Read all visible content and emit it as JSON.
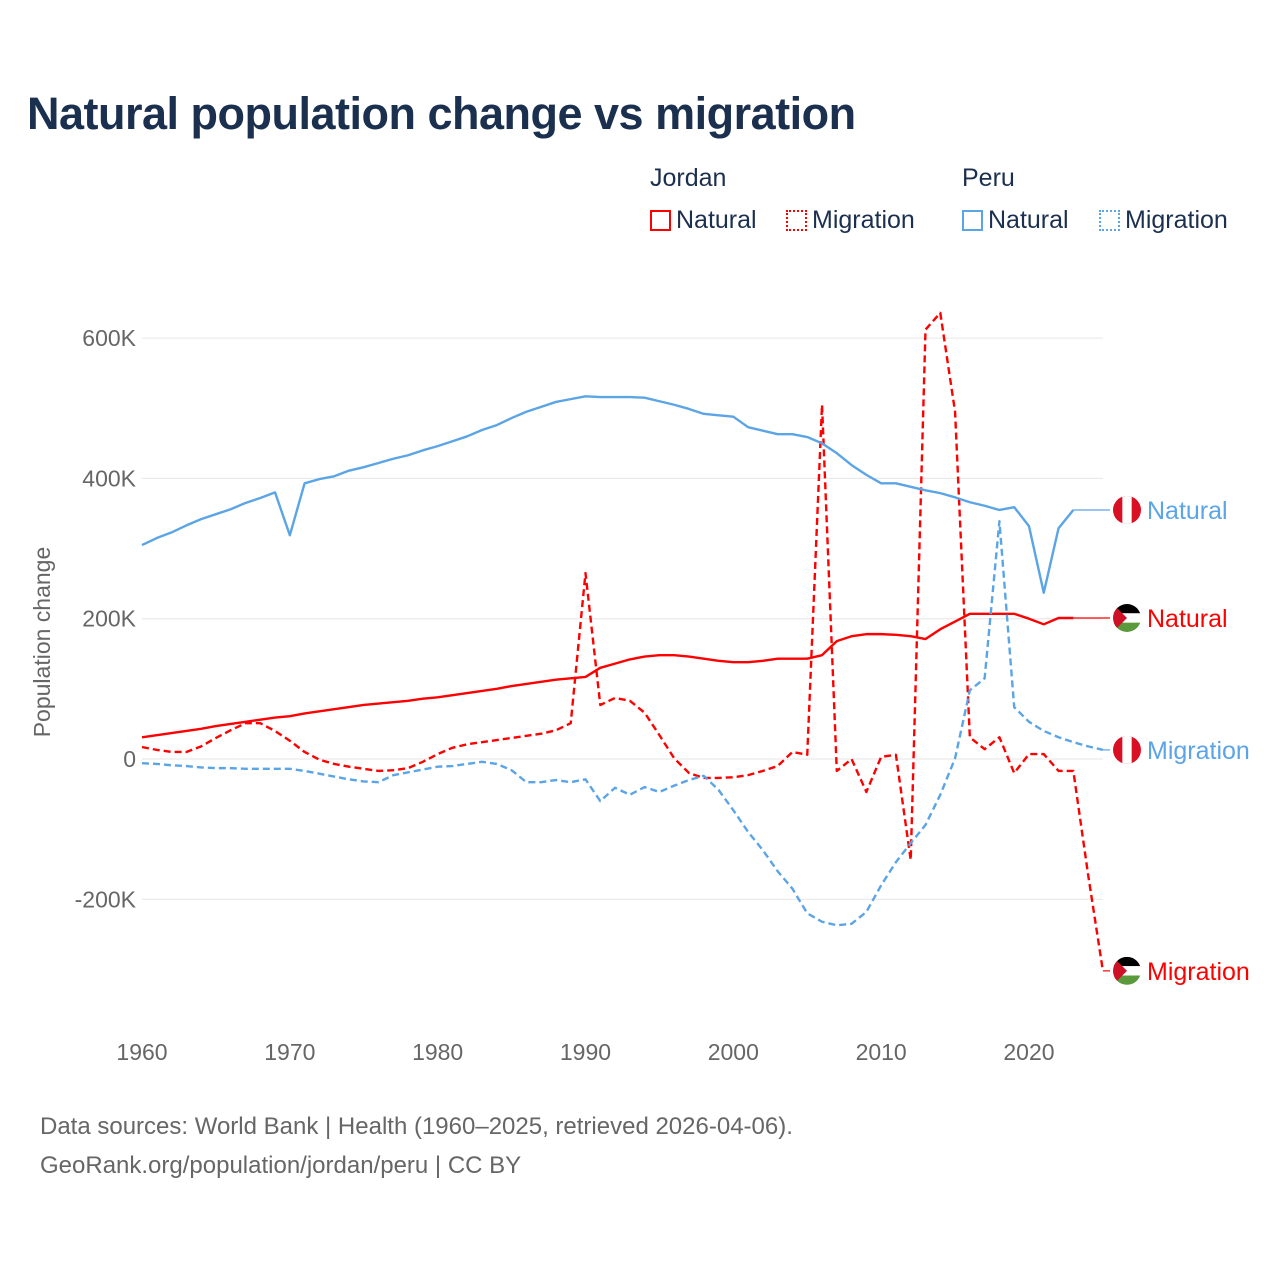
{
  "chart_data": {
    "type": "line",
    "title": "Natural population change vs migration",
    "xlabel": "",
    "ylabel": "Population change",
    "xlim": [
      1960,
      2025
    ],
    "ylim": [
      -300000,
      640000
    ],
    "x_ticks": [
      1960,
      1970,
      1980,
      1990,
      2000,
      2010,
      2020
    ],
    "y_ticks": [
      {
        "v": -200000,
        "label": "-200K"
      },
      {
        "v": 0,
        "label": "0"
      },
      {
        "v": 200000,
        "label": "200K"
      },
      {
        "v": 400000,
        "label": "400K"
      },
      {
        "v": 600000,
        "label": "600K"
      }
    ],
    "grid": true,
    "legend_placement": "top-right",
    "legend": [
      {
        "group": "Jordan",
        "items": [
          "Natural",
          "Migration"
        ]
      },
      {
        "group": "Peru",
        "items": [
          "Natural",
          "Migration"
        ]
      }
    ],
    "series": [
      {
        "name": "Jordan Natural",
        "country": "Jordan",
        "label": "Natural",
        "color": "#ff0000",
        "dash": false,
        "start": 1960,
        "values_k": [
          31,
          34,
          37,
          40,
          43,
          47,
          50,
          53,
          56,
          59,
          61,
          65,
          68,
          71,
          74,
          77,
          79,
          81,
          83,
          86,
          88,
          91,
          94,
          97,
          100,
          104,
          107,
          110,
          113,
          115,
          117,
          130,
          136,
          142,
          146,
          148,
          148,
          146,
          143,
          140,
          138,
          138,
          140,
          143,
          143,
          143,
          148,
          168,
          175,
          178,
          178,
          177,
          175,
          171,
          185,
          196,
          207,
          207,
          207,
          207,
          200,
          192,
          201,
          201
        ]
      },
      {
        "name": "Jordan Migration",
        "country": "Jordan",
        "label": "Migration",
        "color": "#ff0000",
        "dash": true,
        "start": 1960,
        "values_k": [
          17,
          13,
          10,
          10,
          18,
          30,
          41,
          51,
          51,
          40,
          26,
          10,
          -1,
          -7,
          -11,
          -14,
          -17,
          -16,
          -13,
          -4,
          7,
          16,
          21,
          24,
          27,
          30,
          33,
          36,
          41,
          51,
          265,
          77,
          87,
          83,
          66,
          34,
          1,
          -20,
          -27,
          -27,
          -26,
          -23,
          -17,
          -10,
          10,
          6,
          505,
          -17,
          0,
          -47,
          3,
          6,
          -144,
          612,
          636,
          495,
          31,
          14,
          31,
          -20,
          7,
          7,
          -17,
          -17,
          -165,
          -302
        ]
      },
      {
        "name": "Peru Natural",
        "country": "Peru",
        "label": "Natural",
        "color": "#5ba4e6",
        "dash": false,
        "start": 1960,
        "values_k": [
          305,
          315,
          323,
          333,
          342,
          349,
          356,
          365,
          372,
          380,
          319,
          393,
          399,
          403,
          411,
          416,
          422,
          428,
          433,
          440,
          446,
          453,
          460,
          469,
          476,
          486,
          495,
          502,
          509,
          513,
          517,
          516,
          516,
          516,
          515,
          510,
          505,
          499,
          492,
          490,
          488,
          473,
          468,
          463,
          463,
          459,
          450,
          436,
          419,
          405,
          393,
          393,
          388,
          383,
          379,
          373,
          366,
          361,
          355,
          359,
          332,
          237,
          329,
          355
        ]
      },
      {
        "name": "Peru Migration",
        "country": "Peru",
        "label": "Migration",
        "color": "#5ba4e6",
        "dash": true,
        "start": 1960,
        "values_k": [
          -6,
          -7,
          -9,
          -10,
          -12,
          -13,
          -13,
          -14,
          -14,
          -14,
          -14,
          -17,
          -21,
          -25,
          -29,
          -32,
          -33,
          -23,
          -19,
          -15,
          -11,
          -10,
          -7,
          -4,
          -7,
          -16,
          -33,
          -33,
          -30,
          -33,
          -29,
          -60,
          -41,
          -51,
          -40,
          -47,
          -38,
          -30,
          -24,
          -44,
          -73,
          -104,
          -130,
          -160,
          -185,
          -220,
          -232,
          -237,
          -235,
          -218,
          -180,
          -147,
          -120,
          -94,
          -51,
          1,
          98,
          115,
          339,
          74,
          53,
          40,
          31,
          24,
          18,
          13
        ]
      }
    ]
  },
  "footer": {
    "line1": "Data sources: World Bank | Health (1960–2025, retrieved 2026-04-06).",
    "line2": "GeoRank.org/population/jordan/peru | CC BY"
  }
}
